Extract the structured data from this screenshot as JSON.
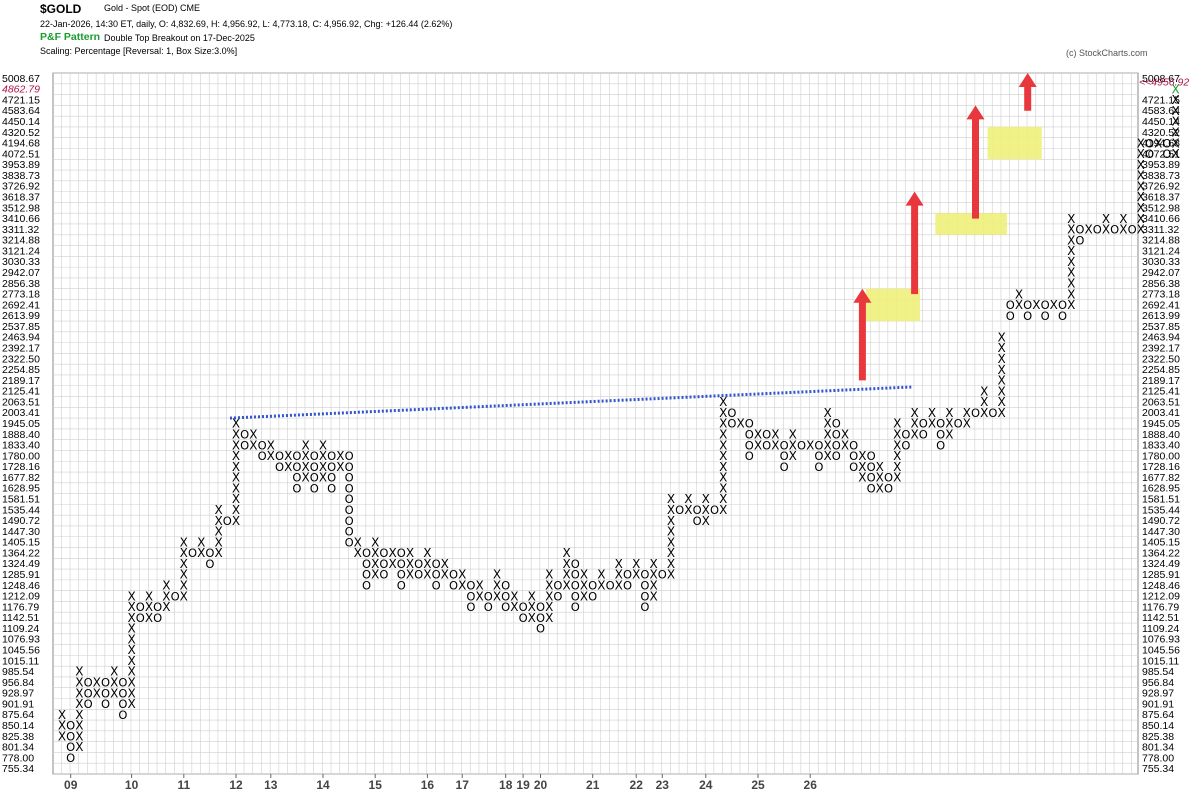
{
  "header": {
    "title": "$GOLD",
    "subtitle": "Gold - Spot (EOD)  CME",
    "ohlc": "22-Jan-2026, 14:30 ET, daily, O: 4,832.69, H: 4,956.92, L: 4,773.18, C: 4,956.92, Chg: +126.44 (2.62%)",
    "pattern_label": "P&F Pattern",
    "pattern_text": "Double Top Breakout on 17-Dec-2025",
    "scaling": "Scaling: Percentage [Reversal: 1, Box Size:3.0%]",
    "watermark": "(c) StockCharts.com"
  },
  "colors": {
    "x_mark": "#000000",
    "o_mark": "#000000",
    "latest_x": "#1a9e2c",
    "trendline": "#3355cc",
    "highlight": "#eef07a",
    "arrow": "#e8383d",
    "current_price": "#b0164a",
    "grid": "#cfcfcf"
  },
  "chart_data": {
    "type": "point-and-figure",
    "title": "$GOLD",
    "scale": "percentage",
    "box_size_pct": 3.0,
    "reversal": 1,
    "price_levels": [
      "5008.67",
      "4862.79",
      "4721.15",
      "4583.64",
      "4450.14",
      "4320.52",
      "4194.68",
      "4072.51",
      "3953.89",
      "3838.73",
      "3726.92",
      "3618.37",
      "3512.98",
      "3410.66",
      "3311.32",
      "3214.88",
      "3121.24",
      "3030.33",
      "2942.07",
      "2856.38",
      "2773.18",
      "2692.41",
      "2613.99",
      "2537.85",
      "2463.94",
      "2392.17",
      "2322.50",
      "2254.85",
      "2189.17",
      "2125.41",
      "2063.51",
      "2003.41",
      "1945.05",
      "1888.40",
      "1833.40",
      "1780.00",
      "1728.16",
      "1677.82",
      "1628.95",
      "1581.51",
      "1535.44",
      "1490.72",
      "1447.30",
      "1405.15",
      "1364.22",
      "1324.49",
      "1285.91",
      "1248.46",
      "1212.09",
      "1176.79",
      "1142.51",
      "1109.24",
      "1076.93",
      "1045.56",
      "1015.11",
      "985.54",
      "956.84",
      "928.97",
      "901.91",
      "875.64",
      "850.14",
      "825.38",
      "801.34",
      "778.00",
      "755.34"
    ],
    "current_price_label": "<<4956.92",
    "current_price": 4956.92,
    "year_labels": [
      {
        "label": "09",
        "col": 1
      },
      {
        "label": "10",
        "col": 8
      },
      {
        "label": "11",
        "col": 14
      },
      {
        "label": "12",
        "col": 20
      },
      {
        "label": "13",
        "col": 24
      },
      {
        "label": "14",
        "col": 30
      },
      {
        "label": "15",
        "col": 36
      },
      {
        "label": "16",
        "col": 42
      },
      {
        "label": "17",
        "col": 46
      },
      {
        "label": "18",
        "col": 51
      },
      {
        "label": "19",
        "col": 53
      },
      {
        "label": "20",
        "col": 55
      },
      {
        "label": "21",
        "col": 61
      },
      {
        "label": "22",
        "col": 66
      },
      {
        "label": "23",
        "col": 69
      },
      {
        "label": "24",
        "col": 74
      },
      {
        "label": "25",
        "col": 80
      },
      {
        "label": "26",
        "col": 86
      }
    ],
    "columns": [
      {
        "t": "X",
        "lo": 825.38,
        "hi": 875.64
      },
      {
        "t": "O",
        "lo": 778.0,
        "hi": 850.14
      },
      {
        "t": "X",
        "lo": 801.34,
        "hi": 985.54
      },
      {
        "t": "O",
        "lo": 901.91,
        "hi": 956.84
      },
      {
        "t": "X",
        "lo": 928.97,
        "hi": 956.84
      },
      {
        "t": "O",
        "lo": 901.91,
        "hi": 956.84
      },
      {
        "t": "X",
        "lo": 928.97,
        "hi": 985.54
      },
      {
        "t": "O",
        "lo": 875.64,
        "hi": 956.84
      },
      {
        "t": "X",
        "lo": 901.91,
        "hi": 1212.09
      },
      {
        "t": "O",
        "lo": 1142.51,
        "hi": 1176.79
      },
      {
        "t": "X",
        "lo": 1142.51,
        "hi": 1212.09
      },
      {
        "t": "O",
        "lo": 1142.51,
        "hi": 1176.79
      },
      {
        "t": "X",
        "lo": 1176.79,
        "hi": 1248.46
      },
      {
        "t": "O",
        "lo": 1212.09,
        "hi": 1212.09
      },
      {
        "t": "X",
        "lo": 1212.09,
        "hi": 1405.15
      },
      {
        "t": "O",
        "lo": 1364.22,
        "hi": 1364.22
      },
      {
        "t": "X",
        "lo": 1364.22,
        "hi": 1405.15
      },
      {
        "t": "O",
        "lo": 1324.49,
        "hi": 1364.22
      },
      {
        "t": "X",
        "lo": 1364.22,
        "hi": 1535.44
      },
      {
        "t": "O",
        "lo": 1490.72,
        "hi": 1490.72
      },
      {
        "t": "X",
        "lo": 1490.72,
        "hi": 1945.05
      },
      {
        "t": "O",
        "lo": 1833.4,
        "hi": 1888.4
      },
      {
        "t": "X",
        "lo": 1833.4,
        "hi": 1888.4
      },
      {
        "t": "O",
        "lo": 1780.0,
        "hi": 1833.4
      },
      {
        "t": "X",
        "lo": 1780.0,
        "hi": 1833.4
      },
      {
        "t": "O",
        "lo": 1728.16,
        "hi": 1780.0
      },
      {
        "t": "X",
        "lo": 1728.16,
        "hi": 1780.0
      },
      {
        "t": "O",
        "lo": 1628.95,
        "hi": 1780.0
      },
      {
        "t": "X",
        "lo": 1677.82,
        "hi": 1833.4
      },
      {
        "t": "O",
        "lo": 1628.95,
        "hi": 1780.0
      },
      {
        "t": "X",
        "lo": 1677.82,
        "hi": 1833.4
      },
      {
        "t": "O",
        "lo": 1628.95,
        "hi": 1780.0
      },
      {
        "t": "X",
        "lo": 1728.16,
        "hi": 1780.0
      },
      {
        "t": "O",
        "lo": 1405.15,
        "hi": 1780.0
      },
      {
        "t": "X",
        "lo": 1364.22,
        "hi": 1405.15
      },
      {
        "t": "O",
        "lo": 1248.46,
        "hi": 1364.22
      },
      {
        "t": "X",
        "lo": 1285.91,
        "hi": 1405.15
      },
      {
        "t": "O",
        "lo": 1285.91,
        "hi": 1364.22
      },
      {
        "t": "X",
        "lo": 1324.49,
        "hi": 1364.22
      },
      {
        "t": "O",
        "lo": 1248.46,
        "hi": 1364.22
      },
      {
        "t": "X",
        "lo": 1285.91,
        "hi": 1364.22
      },
      {
        "t": "O",
        "lo": 1285.91,
        "hi": 1324.49
      },
      {
        "t": "X",
        "lo": 1285.91,
        "hi": 1364.22
      },
      {
        "t": "O",
        "lo": 1248.46,
        "hi": 1324.49
      },
      {
        "t": "X",
        "lo": 1285.91,
        "hi": 1324.49
      },
      {
        "t": "O",
        "lo": 1248.46,
        "hi": 1285.91
      },
      {
        "t": "X",
        "lo": 1248.46,
        "hi": 1285.91
      },
      {
        "t": "O",
        "lo": 1176.79,
        "hi": 1248.46
      },
      {
        "t": "X",
        "lo": 1212.09,
        "hi": 1248.46
      },
      {
        "t": "O",
        "lo": 1176.79,
        "hi": 1212.09
      },
      {
        "t": "X",
        "lo": 1212.09,
        "hi": 1285.91
      },
      {
        "t": "O",
        "lo": 1176.79,
        "hi": 1248.46
      },
      {
        "t": "X",
        "lo": 1176.79,
        "hi": 1212.09
      },
      {
        "t": "O",
        "lo": 1142.51,
        "hi": 1176.79
      },
      {
        "t": "X",
        "lo": 1142.51,
        "hi": 1212.09
      },
      {
        "t": "O",
        "lo": 1109.24,
        "hi": 1176.79
      },
      {
        "t": "X",
        "lo": 1142.51,
        "hi": 1285.91
      },
      {
        "t": "O",
        "lo": 1212.09,
        "hi": 1248.46
      },
      {
        "t": "X",
        "lo": 1248.46,
        "hi": 1364.22
      },
      {
        "t": "O",
        "lo": 1176.79,
        "hi": 1324.49
      },
      {
        "t": "X",
        "lo": 1212.09,
        "hi": 1285.91
      },
      {
        "t": "O",
        "lo": 1212.09,
        "hi": 1248.46
      },
      {
        "t": "X",
        "lo": 1248.46,
        "hi": 1285.91
      },
      {
        "t": "O",
        "lo": 1248.46,
        "hi": 1248.46
      },
      {
        "t": "X",
        "lo": 1248.46,
        "hi": 1324.49
      },
      {
        "t": "O",
        "lo": 1248.46,
        "hi": 1285.91
      },
      {
        "t": "X",
        "lo": 1285.91,
        "hi": 1324.49
      },
      {
        "t": "O",
        "lo": 1176.79,
        "hi": 1285.91
      },
      {
        "t": "X",
        "lo": 1212.09,
        "hi": 1324.49
      },
      {
        "t": "O",
        "lo": 1285.91,
        "hi": 1285.91
      },
      {
        "t": "X",
        "lo": 1285.91,
        "hi": 1581.51
      },
      {
        "t": "O",
        "lo": 1535.44,
        "hi": 1535.44
      },
      {
        "t": "X",
        "lo": 1535.44,
        "hi": 1581.51
      },
      {
        "t": "O",
        "lo": 1490.72,
        "hi": 1535.44
      },
      {
        "t": "X",
        "lo": 1490.72,
        "hi": 1581.51
      },
      {
        "t": "O",
        "lo": 1535.44,
        "hi": 1535.44
      },
      {
        "t": "X",
        "lo": 1535.44,
        "hi": 2063.51
      },
      {
        "t": "O",
        "lo": 1945.05,
        "hi": 2003.41
      },
      {
        "t": "X",
        "lo": 1945.05,
        "hi": 1945.05
      },
      {
        "t": "O",
        "lo": 1780.0,
        "hi": 1945.05
      },
      {
        "t": "X",
        "lo": 1833.4,
        "hi": 1888.4
      },
      {
        "t": "O",
        "lo": 1833.4,
        "hi": 1888.4
      },
      {
        "t": "X",
        "lo": 1833.4,
        "hi": 1888.4
      },
      {
        "t": "O",
        "lo": 1728.16,
        "hi": 1833.4
      },
      {
        "t": "X",
        "lo": 1780.0,
        "hi": 1888.4
      },
      {
        "t": "O",
        "lo": 1833.4,
        "hi": 1833.4
      },
      {
        "t": "X",
        "lo": 1833.4,
        "hi": 1833.4
      },
      {
        "t": "O",
        "lo": 1728.16,
        "hi": 1833.4
      },
      {
        "t": "X",
        "lo": 1780.0,
        "hi": 2003.41
      },
      {
        "t": "O",
        "lo": 1780.0,
        "hi": 1945.05
      },
      {
        "t": "X",
        "lo": 1833.4,
        "hi": 1888.4
      },
      {
        "t": "O",
        "lo": 1728.16,
        "hi": 1833.4
      },
      {
        "t": "X",
        "lo": 1677.82,
        "hi": 1780.0
      },
      {
        "t": "O",
        "lo": 1628.95,
        "hi": 1780.0
      },
      {
        "t": "X",
        "lo": 1628.95,
        "hi": 1728.16
      },
      {
        "t": "O",
        "lo": 1628.95,
        "hi": 1677.82
      },
      {
        "t": "X",
        "lo": 1677.82,
        "hi": 1945.05
      },
      {
        "t": "O",
        "lo": 1833.4,
        "hi": 1888.4
      },
      {
        "t": "X",
        "lo": 1888.4,
        "hi": 2003.41
      },
      {
        "t": "O",
        "lo": 1888.4,
        "hi": 1945.05
      },
      {
        "t": "X",
        "lo": 1945.05,
        "hi": 2003.41
      },
      {
        "t": "O",
        "lo": 1833.4,
        "hi": 1945.05
      },
      {
        "t": "X",
        "lo": 1888.4,
        "hi": 2003.41
      },
      {
        "t": "O",
        "lo": 1945.05,
        "hi": 1945.05
      },
      {
        "t": "X",
        "lo": 1945.05,
        "hi": 2003.41
      },
      {
        "t": "O",
        "lo": 2003.41,
        "hi": 2003.41
      },
      {
        "t": "X",
        "lo": 2003.41,
        "hi": 2125.41
      },
      {
        "t": "O",
        "lo": 2003.41,
        "hi": 2003.41
      },
      {
        "t": "X",
        "lo": 2003.41,
        "hi": 2463.94
      },
      {
        "t": "O",
        "lo": 2613.99,
        "hi": 2692.41
      },
      {
        "t": "X",
        "lo": 2692.41,
        "hi": 2773.18
      },
      {
        "t": "O",
        "lo": 2613.99,
        "hi": 2692.41
      },
      {
        "t": "X",
        "lo": 2692.41,
        "hi": 2692.41
      },
      {
        "t": "O",
        "lo": 2613.99,
        "hi": 2692.41
      },
      {
        "t": "X",
        "lo": 2692.41,
        "hi": 2692.41
      },
      {
        "t": "O",
        "lo": 2613.99,
        "hi": 2692.41
      },
      {
        "t": "X",
        "lo": 2692.41,
        "hi": 3410.66
      },
      {
        "t": "O",
        "lo": 3214.88,
        "hi": 3311.32
      },
      {
        "t": "X",
        "lo": 3311.32,
        "hi": 3311.32
      },
      {
        "t": "O",
        "lo": 3311.32,
        "hi": 3311.32
      },
      {
        "t": "X",
        "lo": 3311.32,
        "hi": 3410.66
      },
      {
        "t": "O",
        "lo": 3311.32,
        "hi": 3311.32
      },
      {
        "t": "X",
        "lo": 3311.32,
        "hi": 3410.66
      },
      {
        "t": "O",
        "lo": 3311.32,
        "hi": 3311.32
      },
      {
        "t": "X",
        "lo": 3311.32,
        "hi": 4194.68
      },
      {
        "t": "O",
        "lo": 4072.51,
        "hi": 4194.68
      },
      {
        "t": "X",
        "lo": 4194.68,
        "hi": 4194.68
      },
      {
        "t": "O",
        "lo": 4072.51,
        "hi": 4194.68
      },
      {
        "t": "X",
        "lo": 4072.51,
        "hi": 4862.79
      }
    ],
    "annotations": {
      "trendline": {
        "from_col": 20,
        "from_price": 1945.05,
        "to_col": 97,
        "to_price": 2150.0,
        "style": "dotted"
      },
      "breakout_boxes": [
        {
          "col_from": 93,
          "col_to": 98,
          "lo": 2613.99,
          "hi": 2773.18
        },
        {
          "col_from": 101,
          "col_to": 108,
          "lo": 3311.32,
          "hi": 3410.66
        },
        {
          "col_from": 107,
          "col_to": 112,
          "lo": 4072.51,
          "hi": 4320.52
        }
      ],
      "arrows": [
        {
          "col": 92,
          "from_price": 2189.17,
          "to_price": 2773.18
        },
        {
          "col": 98,
          "from_price": 2773.18,
          "to_price": 3618.37
        },
        {
          "col": 105,
          "from_price": 3410.66,
          "to_price": 4583.64
        },
        {
          "col": 111,
          "from_price": 4583.64,
          "to_price": 5008.67
        }
      ]
    },
    "grid": true
  }
}
